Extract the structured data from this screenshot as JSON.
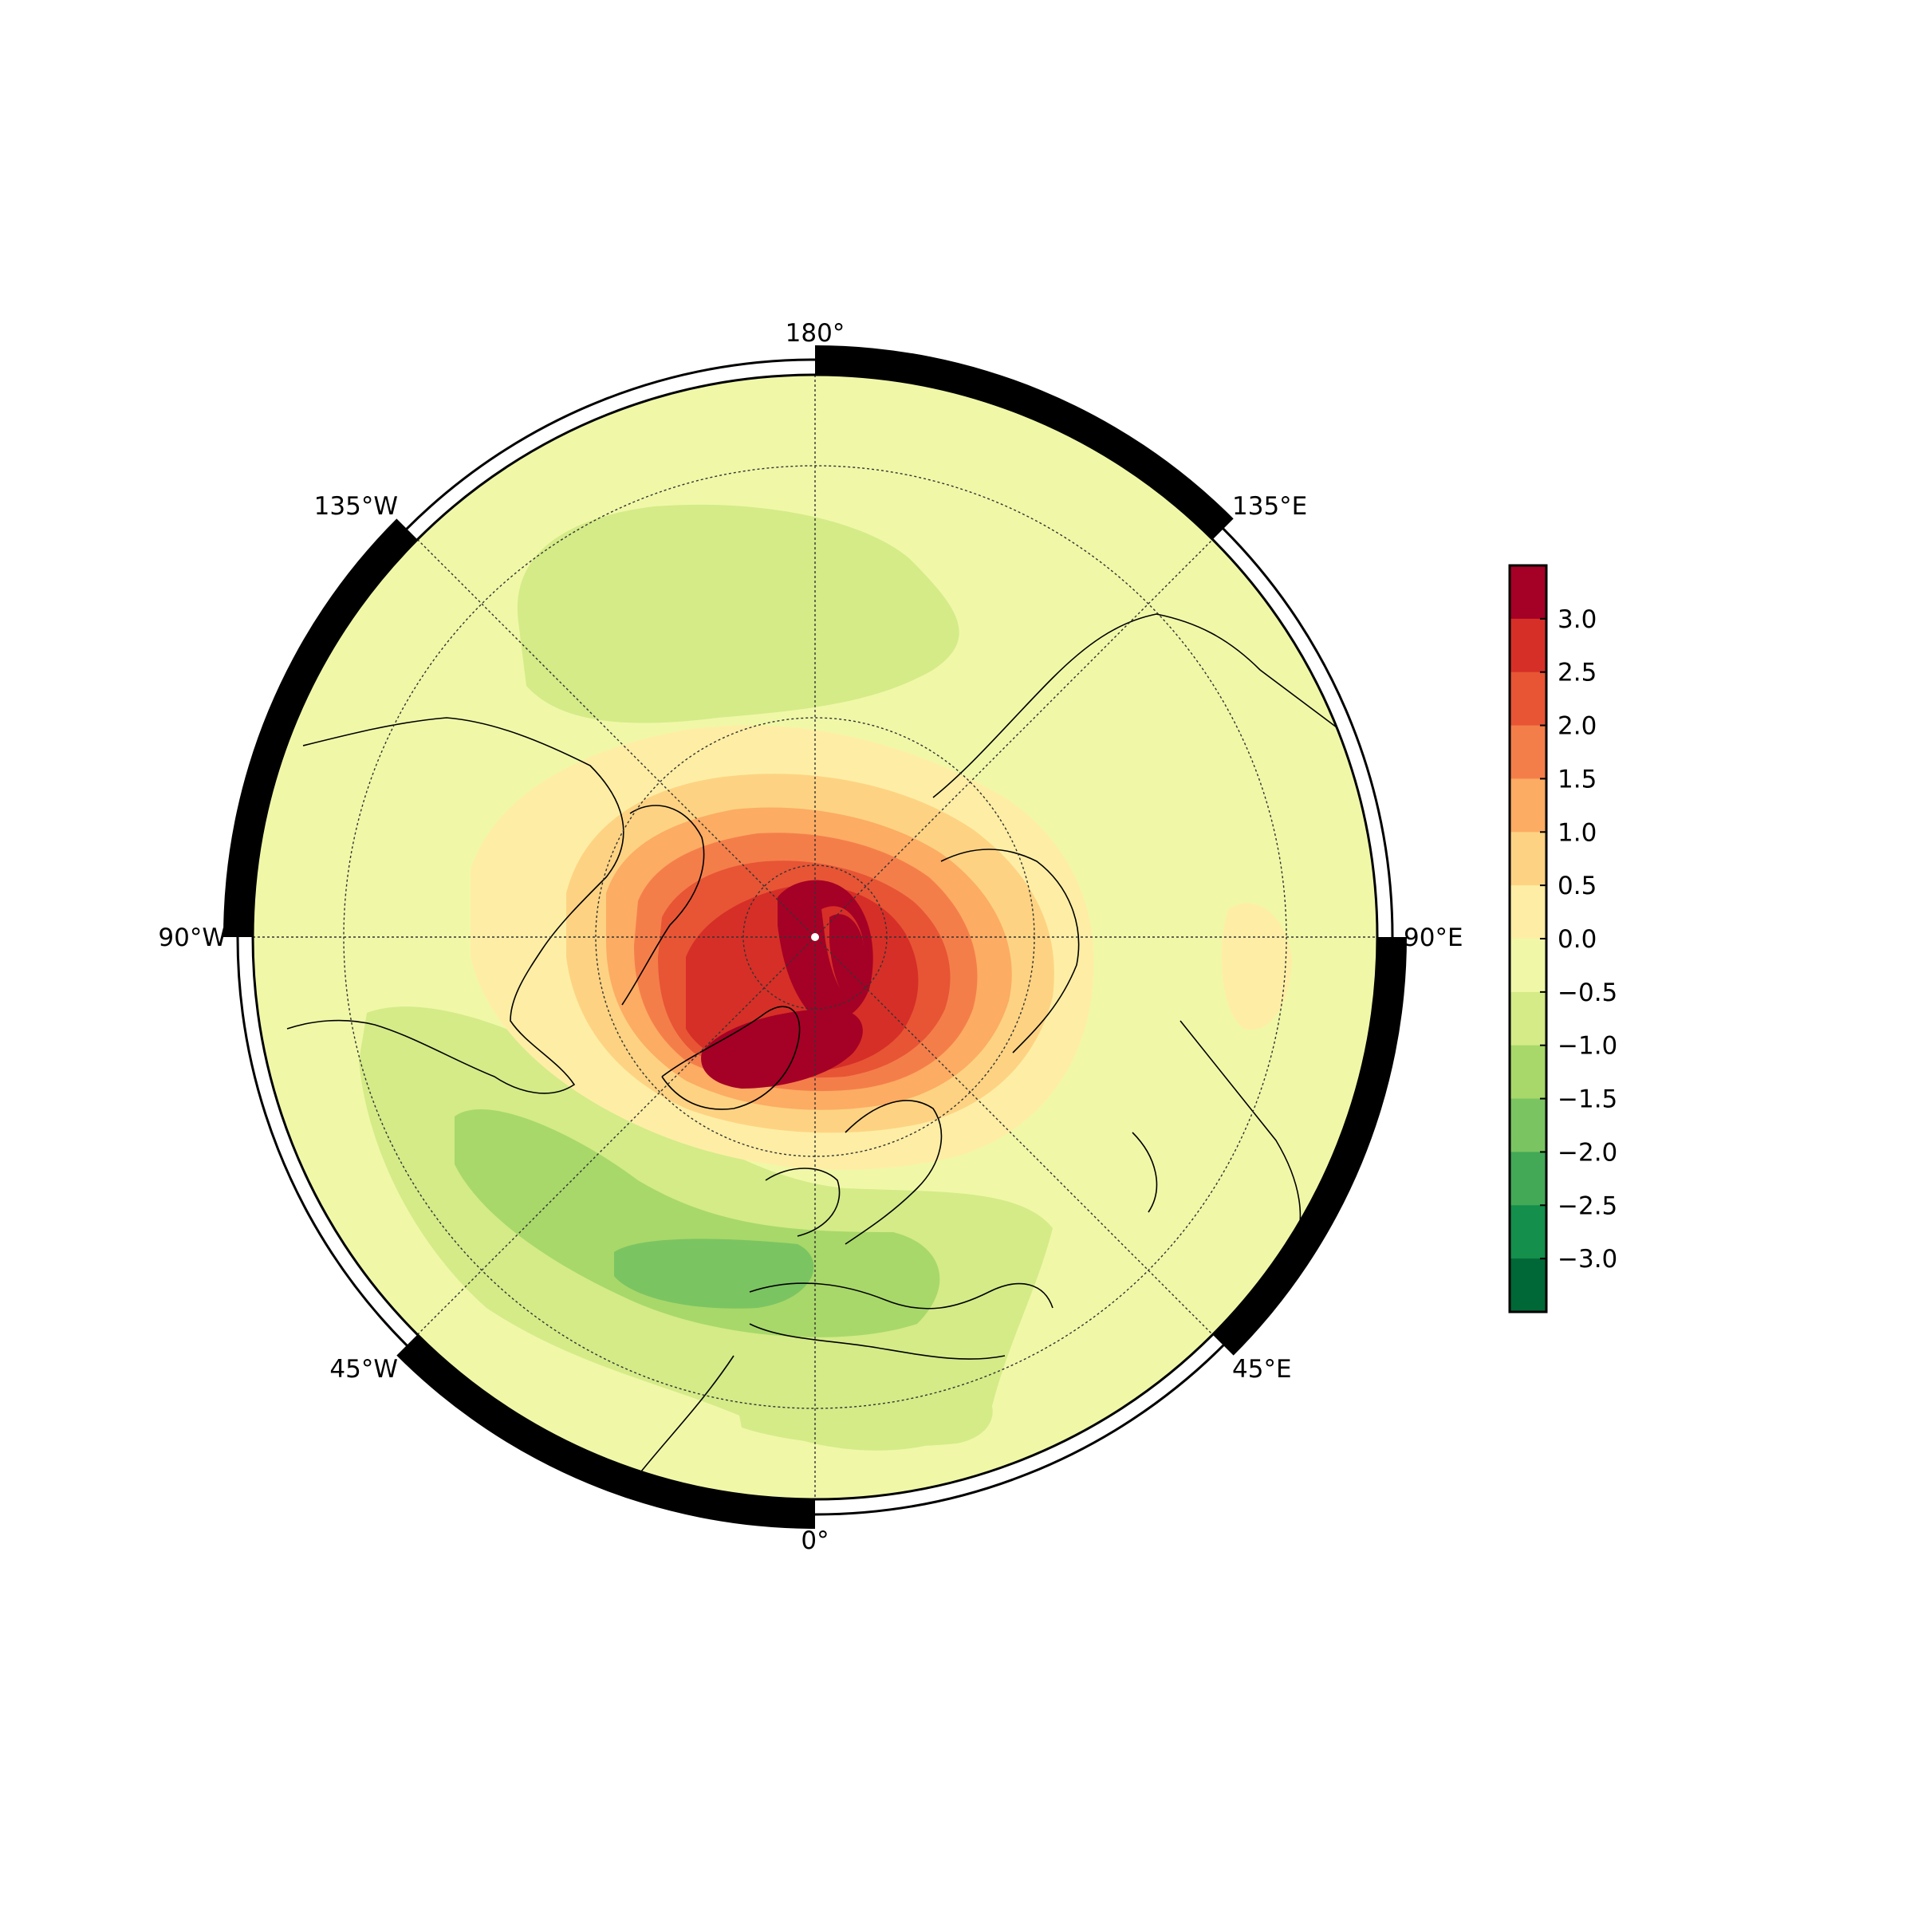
{
  "map": {
    "projection": "north-polar-stereographic",
    "longitude_labels": [
      {
        "key": "180",
        "text": "180°"
      },
      {
        "key": "135E",
        "text": "135°E"
      },
      {
        "key": "90E",
        "text": "90°E"
      },
      {
        "key": "45E",
        "text": "45°E"
      },
      {
        "key": "0",
        "text": "0°"
      },
      {
        "key": "45W",
        "text": "45°W"
      },
      {
        "key": "90W",
        "text": "90°W"
      },
      {
        "key": "135W",
        "text": "135°W"
      }
    ],
    "graticule": "dotted",
    "coastlines": true,
    "pole_marker": true
  },
  "colorbar": {
    "ticks": [
      "3.0",
      "2.5",
      "2.0",
      "1.5",
      "1.0",
      "0.5",
      "0.0",
      "−0.5",
      "−1.0",
      "−1.5",
      "−2.0",
      "−2.5",
      "−3.0"
    ],
    "colors_top_to_bottom": [
      "#a50026",
      "#d62f27",
      "#e75535",
      "#f47e4a",
      "#fcac63",
      "#fdd383",
      "#feeea5",
      "#f0f8a8",
      "#d4eb88",
      "#a8d86a",
      "#7bc462",
      "#43a957",
      "#148f4c",
      "#006836"
    ]
  },
  "colors": {
    "field_background": "#f0f8a8",
    "frame": "#000000"
  }
}
